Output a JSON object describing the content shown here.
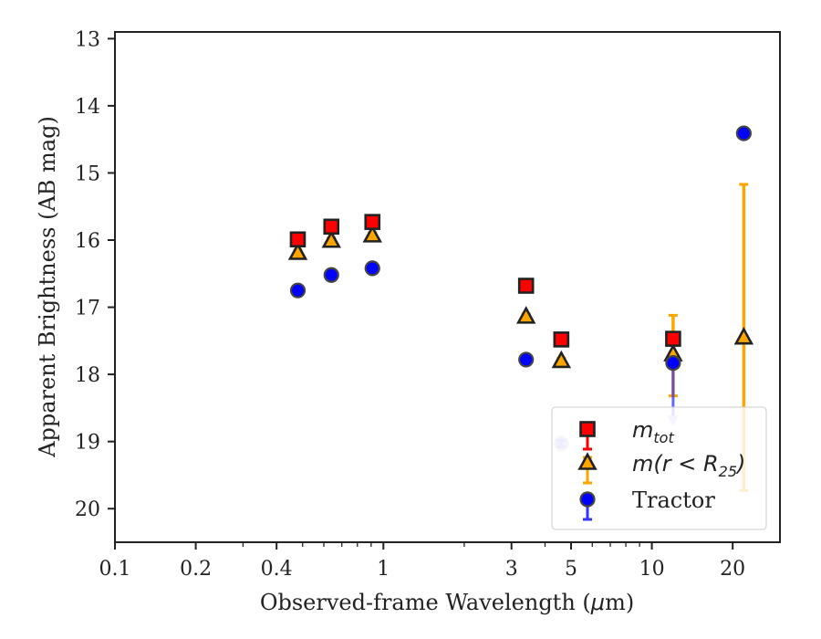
{
  "chart_data": {
    "type": "scatter",
    "xlabel_pre": "Observed-frame Wavelength (",
    "xlabel_mu": "μ",
    "xlabel_post": "m)",
    "ylabel": "Apparent Brightness (AB mag)",
    "xscale": "log",
    "xlim": [
      0.1,
      30
    ],
    "ylim": [
      20.5,
      12.9
    ],
    "y_inverted": true,
    "grid": false,
    "legend_position": "lower-right",
    "x_ticks": [
      {
        "value": 0.1,
        "label": "0.1"
      },
      {
        "value": 0.2,
        "label": "0.2"
      },
      {
        "value": 0.4,
        "label": "0.4"
      },
      {
        "value": 1,
        "label": "1"
      },
      {
        "value": 3,
        "label": "3"
      },
      {
        "value": 5,
        "label": "5"
      },
      {
        "value": 10,
        "label": "10"
      },
      {
        "value": 20,
        "label": "20"
      }
    ],
    "y_ticks": [
      {
        "value": 13,
        "label": "13"
      },
      {
        "value": 14,
        "label": "14"
      },
      {
        "value": 15,
        "label": "15"
      },
      {
        "value": 16,
        "label": "16"
      },
      {
        "value": 17,
        "label": "17"
      },
      {
        "value": 18,
        "label": "18"
      },
      {
        "value": 19,
        "label": "19"
      },
      {
        "value": 20,
        "label": "20"
      }
    ],
    "series": [
      {
        "key": "mtot",
        "legend_main": "m",
        "legend_sub": "tot",
        "marker": "square",
        "color": "#ff0000",
        "errcolor": "#ff0000",
        "points": [
          {
            "x": 0.48,
            "y": 15.99,
            "err": 0.04
          },
          {
            "x": 0.64,
            "y": 15.8,
            "err": 0.04
          },
          {
            "x": 0.91,
            "y": 15.73,
            "err": 0.04
          },
          {
            "x": 3.4,
            "y": 16.68,
            "err": 0.04
          },
          {
            "x": 4.6,
            "y": 17.48,
            "err": 0.04
          },
          {
            "x": 12.0,
            "y": 17.47,
            "err": 0.08
          }
        ]
      },
      {
        "key": "mr25",
        "legend_main": "m(r < R",
        "legend_sub": "25",
        "legend_close": ")",
        "marker": "triangle",
        "color": "#ffa500",
        "errcolor": "#ffa500",
        "points": [
          {
            "x": 0.48,
            "y": 16.19,
            "err": 0.04
          },
          {
            "x": 0.64,
            "y": 16.01,
            "err": 0.04
          },
          {
            "x": 0.91,
            "y": 15.93,
            "err": 0.04
          },
          {
            "x": 3.4,
            "y": 17.14,
            "err": 0.04
          },
          {
            "x": 4.6,
            "y": 17.8,
            "err": 0.04
          },
          {
            "x": 12.0,
            "y": 17.7,
            "err_low": 0.62,
            "err_high": 0.58
          },
          {
            "x": 22.0,
            "y": 17.45,
            "err_low": 2.28,
            "err_high": 2.28
          }
        ]
      },
      {
        "key": "tractor",
        "legend_main": "Tractor",
        "marker": "circle",
        "color": "#0000ff",
        "errcolor": "#3333ff",
        "points": [
          {
            "x": 0.48,
            "y": 16.75,
            "err": 0.05
          },
          {
            "x": 0.64,
            "y": 16.52,
            "err": 0.05
          },
          {
            "x": 0.91,
            "y": 16.42,
            "err": 0.05
          },
          {
            "x": 3.4,
            "y": 17.78,
            "err": 0.05
          },
          {
            "x": 4.6,
            "y": 19.03,
            "err": 0.05,
            "faded": true
          },
          {
            "x": 12.0,
            "y": 17.83,
            "err": 0.05,
            "upper_limit_to": 18.75
          },
          {
            "x": 22.0,
            "y": 14.41,
            "err": 0.06
          }
        ]
      }
    ]
  }
}
